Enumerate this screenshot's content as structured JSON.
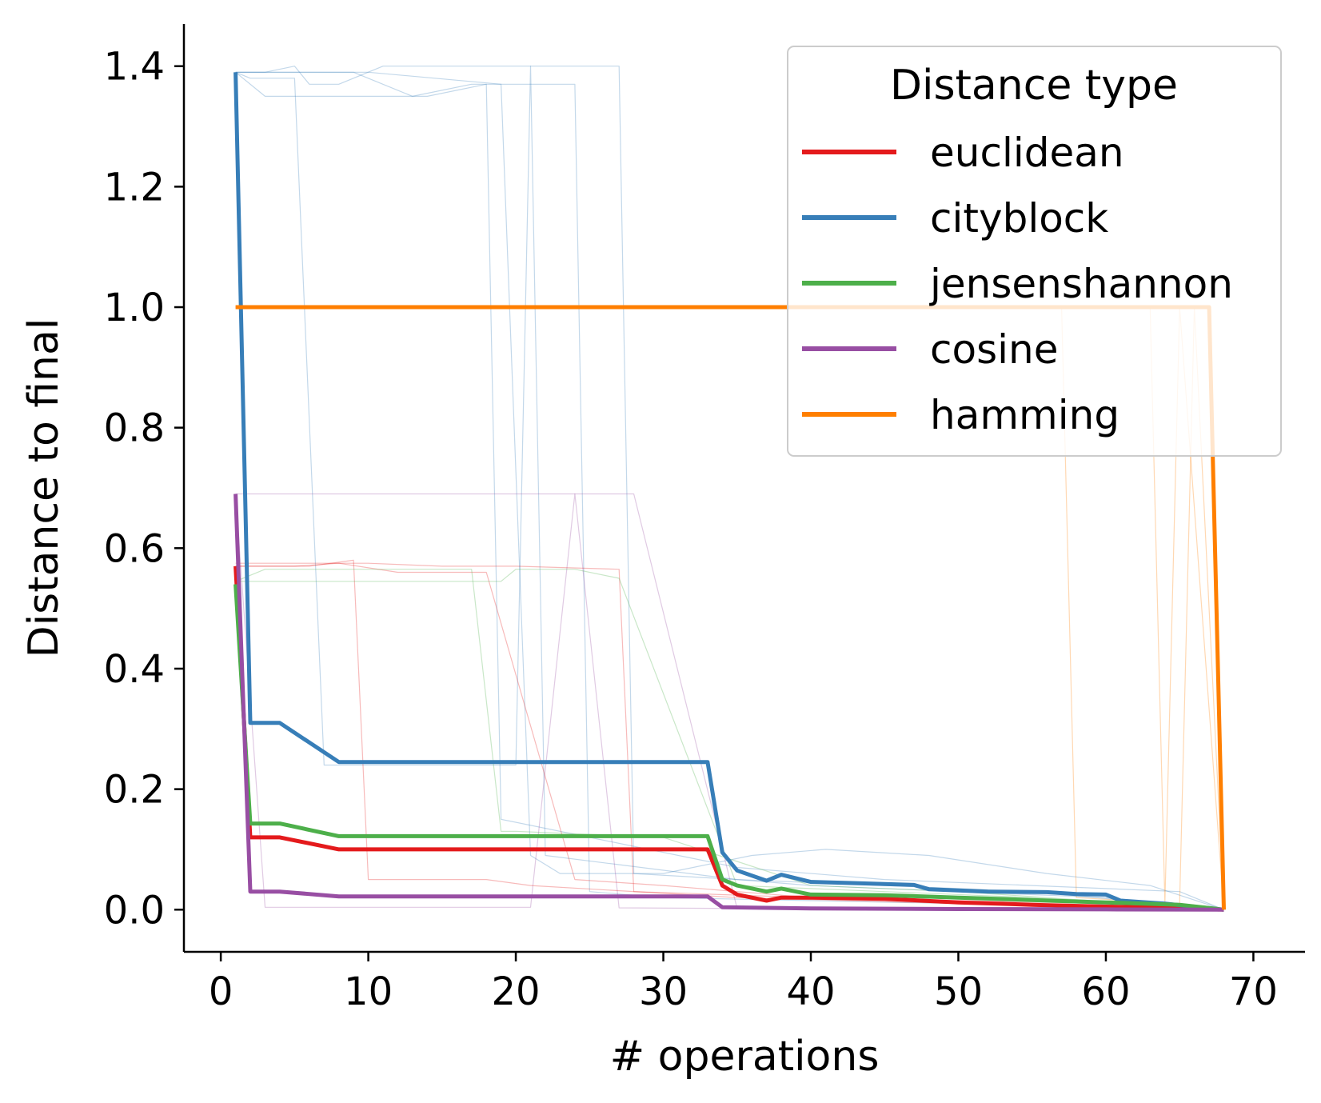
{
  "chart_data": {
    "type": "line",
    "title": "",
    "xlabel": "# operations",
    "ylabel": "Distance to final",
    "xlim": [
      -2.5,
      73.5
    ],
    "ylim": [
      -0.07,
      1.47
    ],
    "xticks": [
      0,
      10,
      20,
      30,
      40,
      50,
      60,
      70
    ],
    "yticks": [
      0.0,
      0.2,
      0.4,
      0.6,
      0.8,
      1.0,
      1.2,
      1.4
    ],
    "ytick_labels": [
      "0.0",
      "0.2",
      "0.4",
      "0.6",
      "0.8",
      "1.0",
      "1.2",
      "1.4"
    ],
    "grid": false,
    "legend": {
      "title": "Distance type",
      "placement": "upper right"
    },
    "series": [
      {
        "name": "euclidean",
        "color": "#e41a1c",
        "x": [
          1,
          2,
          4,
          8,
          10,
          20,
          30,
          33,
          34,
          35,
          37,
          38,
          40,
          45,
          50,
          55,
          60,
          65,
          68
        ],
        "y": [
          0.57,
          0.12,
          0.12,
          0.1,
          0.1,
          0.1,
          0.1,
          0.1,
          0.04,
          0.025,
          0.015,
          0.02,
          0.02,
          0.018,
          0.012,
          0.008,
          0.005,
          0.003,
          0.0
        ]
      },
      {
        "name": "cityblock",
        "color": "#377eb8",
        "x": [
          1,
          2,
          4,
          8,
          10,
          20,
          25,
          30,
          33,
          34,
          35,
          37,
          38,
          40,
          43,
          47,
          48,
          52,
          56,
          58,
          60,
          61,
          64,
          68
        ],
        "y": [
          1.39,
          0.31,
          0.31,
          0.245,
          0.245,
          0.245,
          0.245,
          0.245,
          0.245,
          0.095,
          0.065,
          0.048,
          0.058,
          0.046,
          0.044,
          0.041,
          0.034,
          0.03,
          0.029,
          0.026,
          0.025,
          0.015,
          0.01,
          0.0
        ]
      },
      {
        "name": "jensenshannon",
        "color": "#4daf4a",
        "x": [
          1,
          2,
          4,
          8,
          10,
          20,
          30,
          33,
          34,
          35,
          37,
          38,
          40,
          45,
          50,
          55,
          60,
          65,
          68
        ],
        "y": [
          0.54,
          0.143,
          0.143,
          0.122,
          0.122,
          0.122,
          0.122,
          0.122,
          0.05,
          0.04,
          0.03,
          0.035,
          0.025,
          0.024,
          0.02,
          0.016,
          0.012,
          0.008,
          0.0
        ]
      },
      {
        "name": "cosine",
        "color": "#984ea3",
        "x": [
          1,
          2,
          4,
          8,
          10,
          20,
          30,
          33,
          34,
          40,
          50,
          60,
          68
        ],
        "y": [
          0.69,
          0.03,
          0.03,
          0.022,
          0.022,
          0.022,
          0.022,
          0.022,
          0.004,
          0.002,
          0.001,
          0.0005,
          0.0
        ]
      },
      {
        "name": "hamming",
        "color": "#ff7f00",
        "x": [
          1,
          10,
          20,
          30,
          40,
          50,
          60,
          67,
          68
        ],
        "y": [
          1.0,
          1.0,
          1.0,
          1.0,
          1.0,
          1.0,
          1.0,
          1.0,
          0.0
        ]
      }
    ],
    "background_runs": [
      {
        "color": "#377eb8",
        "x": [
          1,
          3,
          5,
          6,
          7,
          8,
          11,
          13,
          14,
          17,
          18,
          26,
          27,
          28,
          35,
          40,
          50,
          60,
          68
        ],
        "y": [
          1.39,
          1.39,
          1.4,
          1.37,
          1.37,
          1.37,
          1.4,
          1.4,
          1.4,
          1.4,
          1.4,
          1.4,
          1.4,
          0.06,
          0.05,
          0.04,
          0.03,
          0.02,
          0.0
        ]
      },
      {
        "color": "#377eb8",
        "x": [
          1,
          3,
          6,
          10,
          13,
          14,
          18,
          19,
          35,
          45,
          55,
          65,
          68
        ],
        "y": [
          1.39,
          1.35,
          1.35,
          1.35,
          1.35,
          1.35,
          1.37,
          0.15,
          0.07,
          0.05,
          0.04,
          0.03,
          0.0
        ]
      },
      {
        "color": "#377eb8",
        "x": [
          1,
          2,
          5,
          7,
          10,
          20,
          21,
          22,
          35,
          45,
          55,
          68
        ],
        "y": [
          1.39,
          1.38,
          1.38,
          0.24,
          0.24,
          0.24,
          1.4,
          0.09,
          0.05,
          0.04,
          0.03,
          0.0
        ]
      },
      {
        "color": "#377eb8",
        "x": [
          1,
          3,
          9,
          13,
          17,
          24,
          25,
          30,
          40,
          50,
          60,
          68
        ],
        "y": [
          1.39,
          1.39,
          1.39,
          1.35,
          1.37,
          1.37,
          0.03,
          0.02,
          0.015,
          0.01,
          0.008,
          0.0
        ]
      },
      {
        "color": "#377eb8",
        "x": [
          1,
          10,
          19,
          21,
          23,
          30,
          36,
          41,
          48,
          56,
          63,
          68
        ],
        "y": [
          1.39,
          1.39,
          1.37,
          0.09,
          0.06,
          0.06,
          0.09,
          0.1,
          0.09,
          0.06,
          0.04,
          0.0
        ]
      },
      {
        "color": "#984ea3",
        "x": [
          1,
          3,
          5,
          7,
          10,
          11,
          14,
          19,
          20,
          27,
          28,
          35,
          50,
          68
        ],
        "y": [
          0.69,
          0.69,
          0.69,
          0.69,
          0.69,
          0.69,
          0.69,
          0.69,
          0.69,
          0.69,
          0.69,
          0.002,
          0.001,
          0.0
        ]
      },
      {
        "color": "#984ea3",
        "x": [
          1,
          3,
          4,
          8,
          10,
          20,
          21,
          24,
          27,
          35,
          50,
          68
        ],
        "y": [
          0.69,
          0.004,
          0.004,
          0.004,
          0.004,
          0.004,
          0.004,
          0.69,
          0.003,
          0.002,
          0.001,
          0.0
        ]
      },
      {
        "color": "#e41a1c",
        "x": [
          1,
          3,
          5,
          10,
          15,
          19,
          20,
          27,
          28,
          40,
          55,
          68
        ],
        "y": [
          0.575,
          0.575,
          0.575,
          0.575,
          0.57,
          0.57,
          0.57,
          0.565,
          0.03,
          0.02,
          0.01,
          0.0
        ]
      },
      {
        "color": "#e41a1c",
        "x": [
          1,
          6,
          9,
          10,
          18,
          21,
          35,
          50,
          68
        ],
        "y": [
          0.57,
          0.57,
          0.58,
          0.05,
          0.05,
          0.04,
          0.02,
          0.01,
          0.0
        ]
      },
      {
        "color": "#e41a1c",
        "x": [
          1,
          5,
          8,
          12,
          18,
          24,
          30,
          40,
          50,
          60,
          68
        ],
        "y": [
          0.57,
          0.57,
          0.575,
          0.56,
          0.56,
          0.05,
          0.04,
          0.02,
          0.015,
          0.01,
          0.0
        ]
      },
      {
        "color": "#4daf4a",
        "x": [
          1,
          4,
          10,
          15,
          19,
          20,
          24,
          27,
          35,
          45,
          55,
          68
        ],
        "y": [
          0.545,
          0.545,
          0.545,
          0.545,
          0.545,
          0.565,
          0.565,
          0.55,
          0.04,
          0.03,
          0.02,
          0.0
        ]
      },
      {
        "color": "#4daf4a",
        "x": [
          1,
          3,
          6,
          12,
          17,
          19,
          20,
          30,
          40,
          50,
          68
        ],
        "y": [
          0.545,
          0.565,
          0.565,
          0.565,
          0.565,
          0.13,
          0.13,
          0.12,
          0.04,
          0.03,
          0.0
        ]
      },
      {
        "color": "#ff7f00",
        "x": [
          1,
          10,
          20,
          30,
          40,
          50,
          57,
          58,
          65,
          66,
          68
        ],
        "y": [
          1.0,
          1.0,
          1.0,
          1.0,
          1.0,
          1.0,
          1.0,
          0.02,
          0.01,
          1.0,
          0.0
        ]
      },
      {
        "color": "#ff7f00",
        "x": [
          1,
          10,
          20,
          30,
          40,
          50,
          60,
          63,
          64,
          65,
          68
        ],
        "y": [
          1.0,
          1.0,
          1.0,
          1.0,
          1.0,
          1.0,
          1.0,
          1.0,
          0.01,
          1.0,
          0.0
        ]
      }
    ]
  }
}
